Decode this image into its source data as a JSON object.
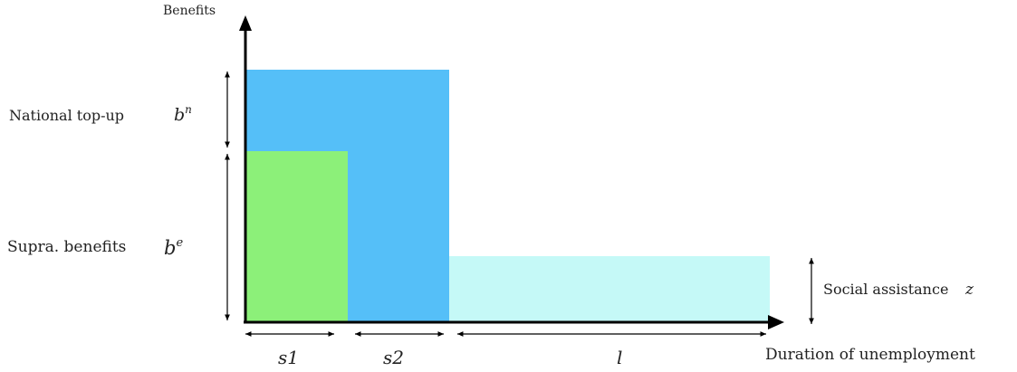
{
  "axes": {
    "y_label": "Benefits",
    "x_label": "Duration of unemployment"
  },
  "left_labels": {
    "national": {
      "text": "National top-up",
      "symbol_base": "b",
      "symbol_sup": "n"
    },
    "supra": {
      "text": "Supra. benefits",
      "symbol_base": "b",
      "symbol_sup": "e"
    }
  },
  "right_label": {
    "text": "Social assistance",
    "symbol": "z"
  },
  "durations": {
    "s1": "s1",
    "s2": "s2",
    "l": "l"
  },
  "colors": {
    "green": "#8cf079",
    "blue": "#55bff8",
    "cyan": "#c5f9f7",
    "axis": "#000000"
  }
}
